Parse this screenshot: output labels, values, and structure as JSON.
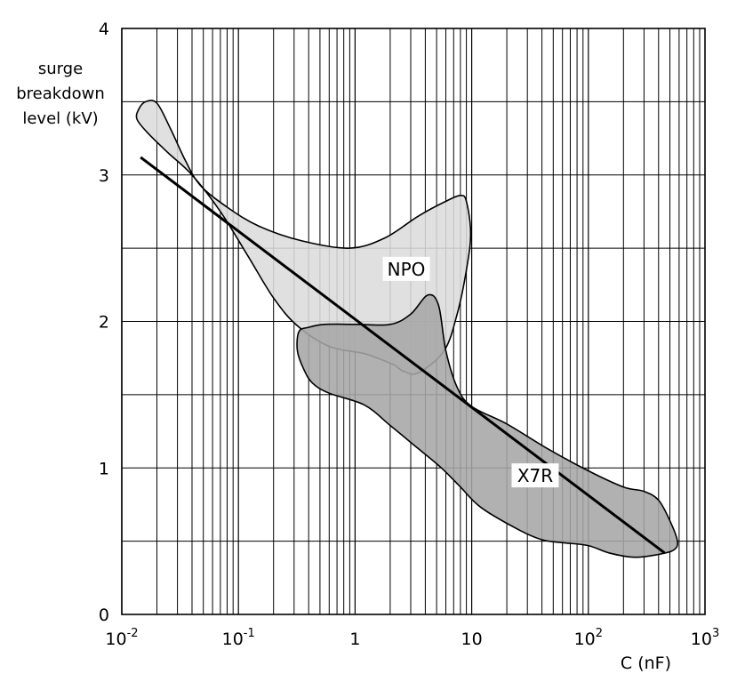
{
  "chart_data": {
    "type": "area",
    "title": "",
    "ylabel_lines": [
      "surge",
      "breakdown",
      "level (kV)"
    ],
    "xlabel": "C (nF)",
    "xscale": "log",
    "xlim": [
      0.01,
      1000
    ],
    "ylim": [
      0,
      4
    ],
    "grid": true,
    "x_ticks": [
      {
        "value": 0.01,
        "base": "10",
        "exp": "-2"
      },
      {
        "value": 0.1,
        "base": "10",
        "exp": "-1"
      },
      {
        "value": 1,
        "base": "1",
        "exp": ""
      },
      {
        "value": 10,
        "base": "10",
        "exp": ""
      },
      {
        "value": 100,
        "base": "10",
        "exp": "2"
      },
      {
        "value": 1000,
        "base": "10",
        "exp": "3"
      }
    ],
    "y_ticks": [
      {
        "value": 0,
        "label": "0"
      },
      {
        "value": 1,
        "label": "1"
      },
      {
        "value": 2,
        "label": "2"
      },
      {
        "value": 3,
        "label": "3"
      },
      {
        "value": 4,
        "label": "4"
      }
    ],
    "regions": [
      {
        "name": "NPO",
        "color": "#dcdcdc",
        "label_at": {
          "x": 2.75,
          "y": 2.35
        },
        "outline": [
          [
            0.014,
            3.45
          ],
          [
            0.016,
            3.5
          ],
          [
            0.02,
            3.49
          ],
          [
            0.026,
            3.32
          ],
          [
            0.035,
            3.1
          ],
          [
            0.047,
            2.93
          ],
          [
            0.08,
            2.78
          ],
          [
            0.15,
            2.65
          ],
          [
            0.35,
            2.55
          ],
          [
            0.9,
            2.5
          ],
          [
            1.8,
            2.57
          ],
          [
            3.5,
            2.72
          ],
          [
            6.0,
            2.82
          ],
          [
            8.0,
            2.86
          ],
          [
            9.0,
            2.82
          ],
          [
            9.8,
            2.6
          ],
          [
            9.0,
            2.35
          ],
          [
            7.5,
            2.05
          ],
          [
            5.8,
            1.8
          ],
          [
            3.5,
            1.65
          ],
          [
            2.6,
            1.66
          ],
          [
            2.2,
            1.7
          ],
          [
            1.8,
            1.73
          ],
          [
            1.2,
            1.78
          ],
          [
            0.6,
            1.83
          ],
          [
            0.32,
            1.97
          ],
          [
            0.2,
            2.16
          ],
          [
            0.12,
            2.45
          ],
          [
            0.07,
            2.75
          ],
          [
            0.04,
            3.0
          ],
          [
            0.025,
            3.15
          ],
          [
            0.017,
            3.28
          ],
          [
            0.0135,
            3.38
          ]
        ]
      },
      {
        "name": "X7R",
        "color": "#a6a6a6",
        "label_at": {
          "x": 35,
          "y": 0.94
        },
        "outline": [
          [
            0.33,
            1.93
          ],
          [
            0.4,
            1.96
          ],
          [
            0.55,
            1.98
          ],
          [
            1.0,
            1.98
          ],
          [
            2.0,
            1.98
          ],
          [
            3.0,
            2.05
          ],
          [
            4.2,
            2.18
          ],
          [
            5.2,
            2.11
          ],
          [
            6.0,
            1.8
          ],
          [
            7.5,
            1.55
          ],
          [
            10,
            1.42
          ],
          [
            20,
            1.3
          ],
          [
            45,
            1.13
          ],
          [
            100,
            0.98
          ],
          [
            200,
            0.87
          ],
          [
            300,
            0.84
          ],
          [
            400,
            0.78
          ],
          [
            500,
            0.64
          ],
          [
            580,
            0.5
          ],
          [
            540,
            0.44
          ],
          [
            400,
            0.41
          ],
          [
            250,
            0.39
          ],
          [
            150,
            0.42
          ],
          [
            100,
            0.47
          ],
          [
            60,
            0.49
          ],
          [
            40,
            0.51
          ],
          [
            25,
            0.58
          ],
          [
            12,
            0.73
          ],
          [
            8,
            0.87
          ],
          [
            5.5,
            1.0
          ],
          [
            3.5,
            1.13
          ],
          [
            2.0,
            1.29
          ],
          [
            1.2,
            1.43
          ],
          [
            0.6,
            1.51
          ],
          [
            0.43,
            1.58
          ],
          [
            0.36,
            1.68
          ],
          [
            0.32,
            1.8
          ]
        ]
      }
    ],
    "trend_line": {
      "points": [
        [
          0.0145,
          3.12
        ],
        [
          450,
          0.42
        ]
      ]
    }
  }
}
